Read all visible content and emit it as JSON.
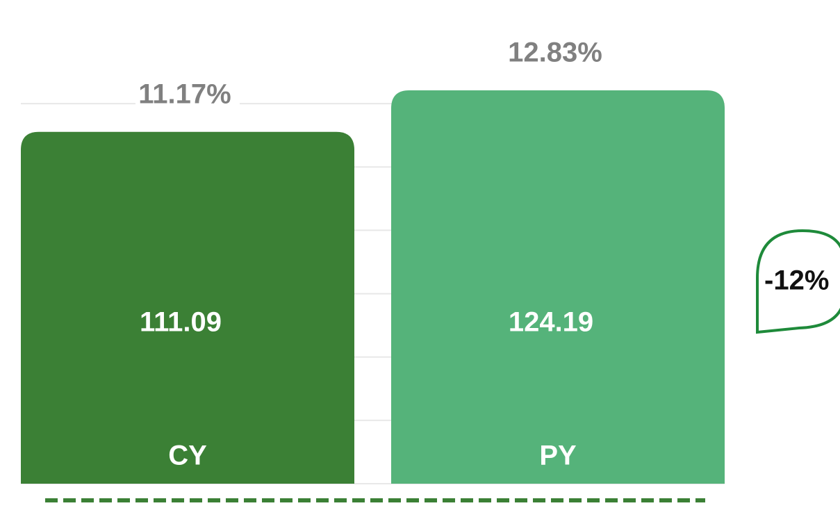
{
  "chart_data": {
    "type": "bar",
    "categories": [
      "CY",
      "PY"
    ],
    "values": [
      111.09,
      124.19
    ],
    "top_values": [
      11.17,
      12.83
    ],
    "top_value_labels": [
      "11.17%",
      "12.83%"
    ],
    "colors": [
      "#3b8035",
      "#55b37a"
    ],
    "ylim": [
      0,
      140
    ],
    "yticks": [
      0,
      20,
      40,
      60,
      80,
      100,
      120
    ],
    "grid": true,
    "change_label": "-12%"
  }
}
